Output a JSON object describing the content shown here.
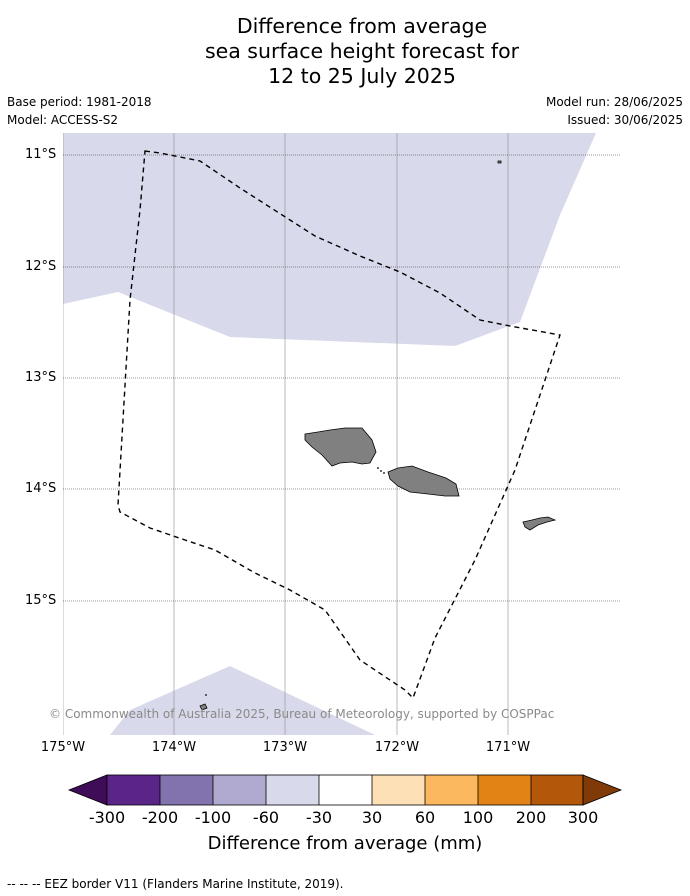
{
  "title": {
    "line1": "Difference from average",
    "line2": "sea surface height forecast for",
    "line3": "12 to 25 July 2025"
  },
  "meta": {
    "base_period": "Base period: 1981-2018",
    "model": "Model: ACCESS-S2",
    "model_run": "Model run: 28/06/2025",
    "issued": "Issued: 30/06/2025"
  },
  "map": {
    "lat_labels": [
      "11°S",
      "12°S",
      "13°S",
      "14°S",
      "15°S"
    ],
    "lon_labels": [
      "175°W",
      "174°W",
      "173°W",
      "172°W",
      "171°W"
    ],
    "copyright": "© Commonwealth of Australia 2025, Bureau of Meteorology, supported by COSPPac",
    "ocean_color": "#ffffff",
    "anomaly_fill_color": "#d8d9ea",
    "land_color": "#808080",
    "regions": [
      {
        "name": "north-anomaly-region",
        "category": "-60 to -30"
      },
      {
        "name": "south-anomaly-region",
        "category": "-60 to -30"
      }
    ],
    "land_features": [
      "savaii-island",
      "upolu-island",
      "tutuila-island",
      "small-islet-north",
      "small-islet-south"
    ]
  },
  "colorbar": {
    "label": "Difference from average (mm)",
    "ticks": [
      "-300",
      "-200",
      "-100",
      "-60",
      "-30",
      "30",
      "60",
      "100",
      "200",
      "300"
    ],
    "colors": [
      "#3f0d57",
      "#5b2588",
      "#8273ae",
      "#b0a9d0",
      "#d8d9ea",
      "#ffffff",
      "#fde0b6",
      "#fbb85f",
      "#e28415",
      "#b3570a",
      "#7f3a07"
    ]
  },
  "footer": {
    "legend_text": "--  --  -- EEZ border V11 (Flanders Marine Institute, 2019)."
  }
}
